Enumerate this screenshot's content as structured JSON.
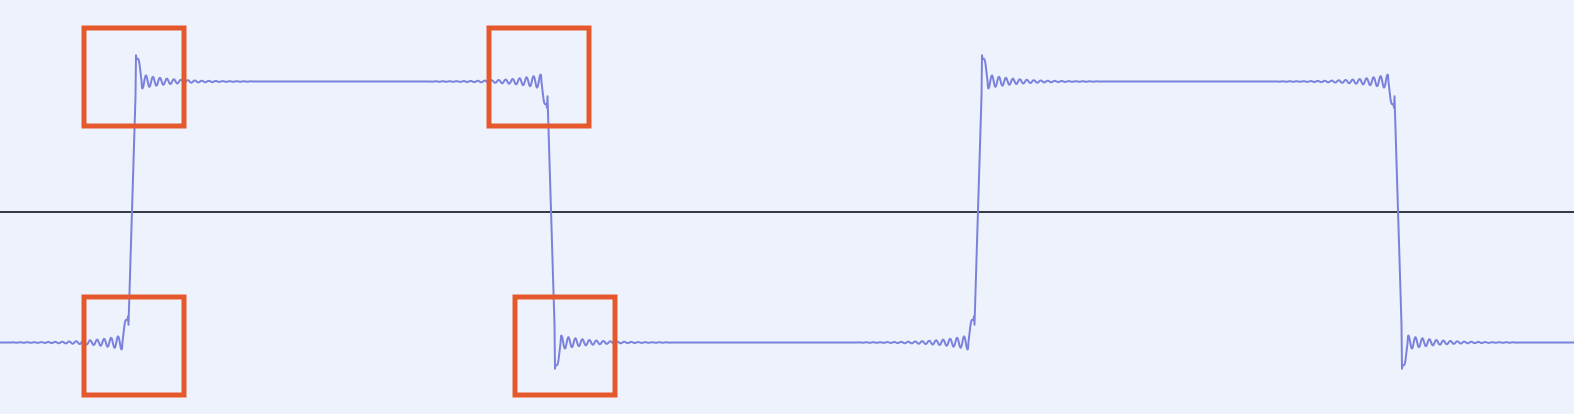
{
  "colors": {
    "background": "#eef2fc",
    "waveform": "#7b82dc",
    "axis": "#3a3a46",
    "highlight": "#e5582b"
  },
  "diagram": {
    "kind": "square-wave-gibbs-ringing",
    "period": 2,
    "visible_periods": 2,
    "amplitude": 1,
    "overshoot_ratio": 1.26,
    "highlighted_transitions": 4,
    "highlights": [
      {
        "edge": "rising",
        "side": "before-jump"
      },
      {
        "edge": "rising",
        "side": "after-jump"
      },
      {
        "edge": "falling",
        "side": "before-jump"
      },
      {
        "edge": "falling",
        "side": "after-jump"
      }
    ]
  }
}
